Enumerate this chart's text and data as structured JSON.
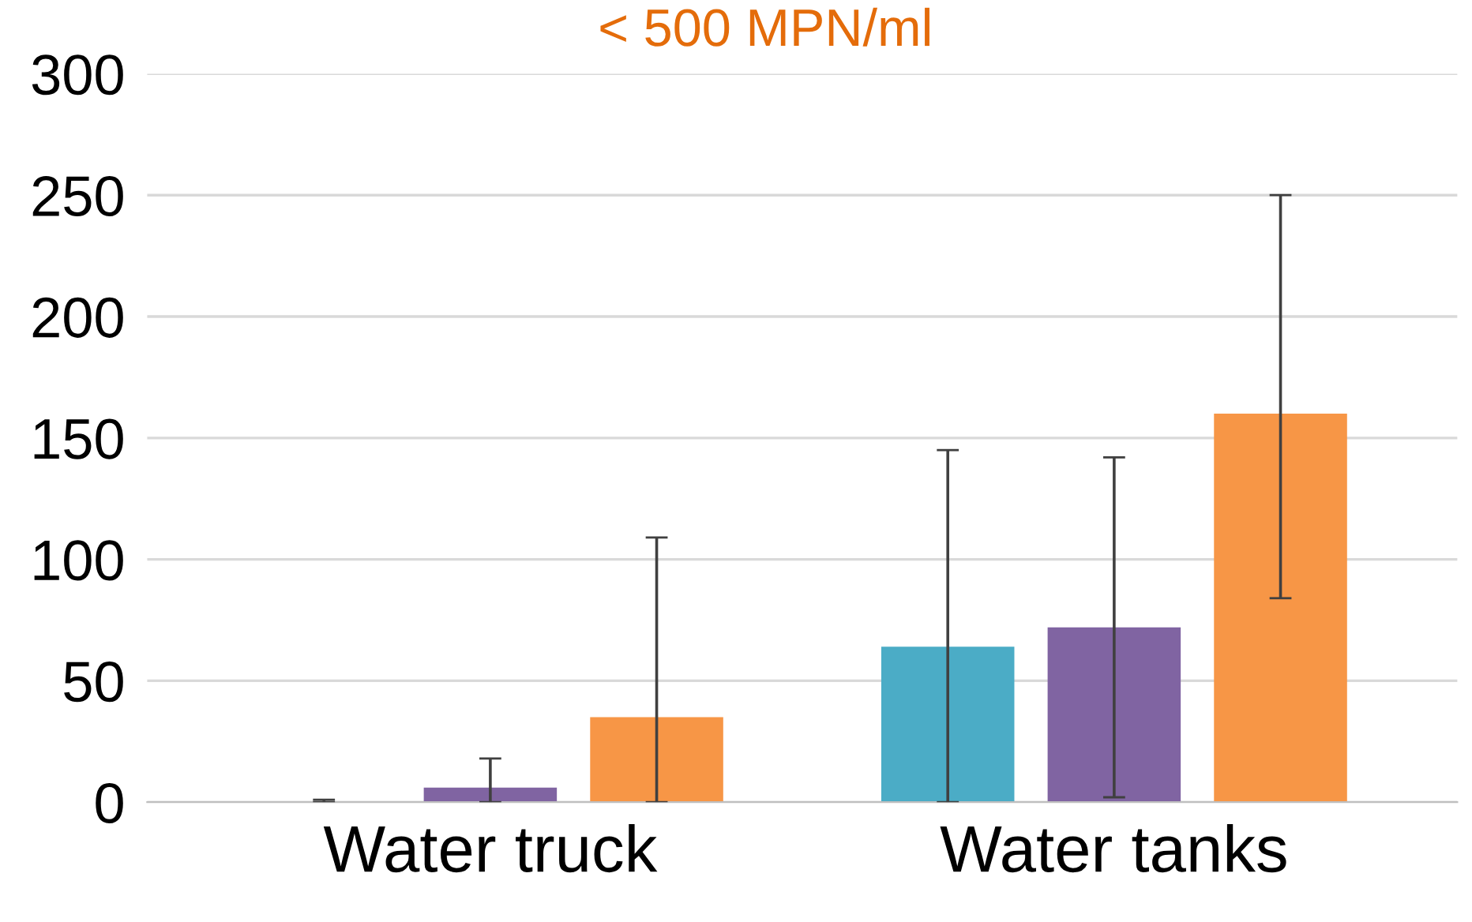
{
  "chart_data": {
    "type": "bar",
    "title": "< 500 MPN/ml",
    "categories": [
      "Water truck",
      "Water tanks"
    ],
    "series": [
      {
        "color": "#4bacc6",
        "values": [
          0,
          64
        ],
        "errors": [
          [
            0,
            1
          ],
          [
            0,
            145
          ]
        ]
      },
      {
        "color": "#8064a2",
        "values": [
          6,
          72
        ],
        "errors": [
          [
            0,
            18
          ],
          [
            2,
            142
          ]
        ]
      },
      {
        "color": "#f79646",
        "values": [
          35,
          160
        ],
        "errors": [
          [
            0,
            109
          ],
          [
            84,
            250
          ]
        ]
      }
    ],
    "ylim": [
      0,
      300
    ],
    "yticks": [
      0,
      50,
      100,
      150,
      200,
      250,
      300
    ],
    "grid": "y",
    "legend": false
  }
}
